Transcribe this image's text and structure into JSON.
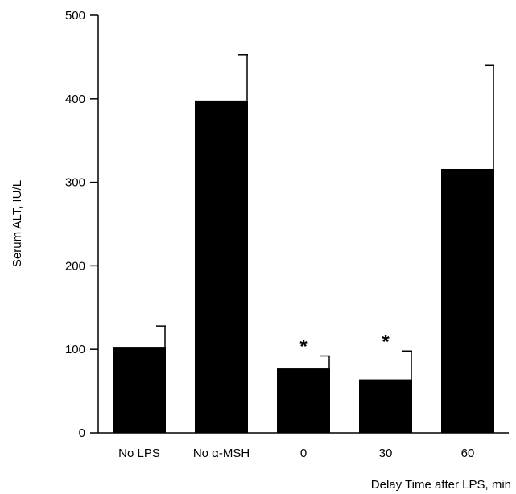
{
  "chart_data": {
    "type": "bar",
    "title": "",
    "xlabel": "Delay Time after LPS, min",
    "ylabel": "Serum ALT, IU/L",
    "ylim": [
      0,
      500
    ],
    "yticks": [
      0,
      100,
      200,
      300,
      400,
      500
    ],
    "categories": [
      "No LPS",
      "No α-MSH",
      "0",
      "30",
      "60"
    ],
    "values": [
      103,
      398,
      77,
      64,
      316
    ],
    "errors": [
      25,
      55,
      15,
      34,
      124
    ],
    "annotations": [
      "",
      "",
      "*",
      "*",
      ""
    ],
    "bar_color": "#000000",
    "grid": false,
    "legend": "none"
  }
}
